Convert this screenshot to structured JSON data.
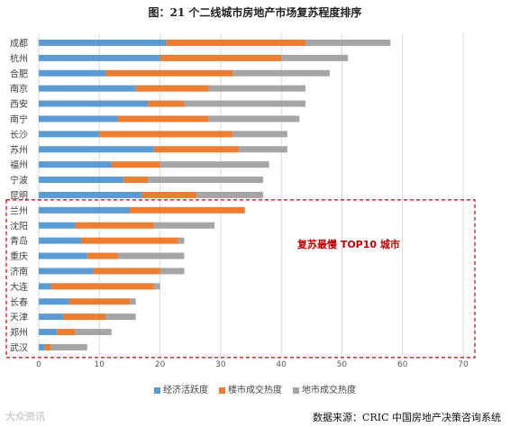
{
  "title": "图：21 个二线城市房地产市场复苏程度排序",
  "source": "数据来源：CRIC 中国房地产决策咨询系统",
  "watermark": "大众资讯",
  "colors": {
    "economy": "#5b9bd5",
    "housing": "#ed7d31",
    "land": "#a5a5a5",
    "annotation": "#c00000"
  },
  "chart_data": {
    "type": "bar",
    "orientation": "horizontal",
    "stacked": true,
    "title": "图：21 个二线城市房地产市场复苏程度排序",
    "categories": [
      "成都",
      "杭州",
      "合肥",
      "南京",
      "西安",
      "南宁",
      "长沙",
      "苏州",
      "福州",
      "宁波",
      "昆明",
      "兰州",
      "沈阳",
      "青岛",
      "重庆",
      "济南",
      "大连",
      "长春",
      "天津",
      "郑州",
      "武汉"
    ],
    "series": [
      {
        "name": "经济活跃度",
        "color": "#5b9bd5",
        "values": [
          21,
          20,
          11,
          16,
          18,
          13,
          10,
          19,
          12,
          14,
          17,
          15,
          6,
          7,
          8,
          9,
          2,
          5,
          4,
          3,
          1
        ]
      },
      {
        "name": "楼市成交热度",
        "color": "#ed7d31",
        "values": [
          23,
          20,
          21,
          12,
          6,
          15,
          22,
          14,
          8,
          4,
          9,
          19,
          13,
          16,
          5,
          11,
          17,
          10,
          7,
          3,
          1
        ]
      },
      {
        "name": "地市成交热度",
        "color": "#a5a5a5",
        "values": [
          14,
          11,
          16,
          16,
          20,
          15,
          9,
          8,
          18,
          19,
          11,
          0,
          10,
          1,
          11,
          4,
          1,
          1,
          5,
          6,
          6
        ]
      }
    ],
    "xlim": [
      0,
      70
    ],
    "xticks": [
      0,
      10,
      20,
      30,
      40,
      50,
      60,
      70
    ],
    "grid": true,
    "legend_position": "bottom",
    "annotation": {
      "text": "复苏最慢 TOP10 城市",
      "range": [
        "兰州",
        "武汉"
      ]
    }
  }
}
